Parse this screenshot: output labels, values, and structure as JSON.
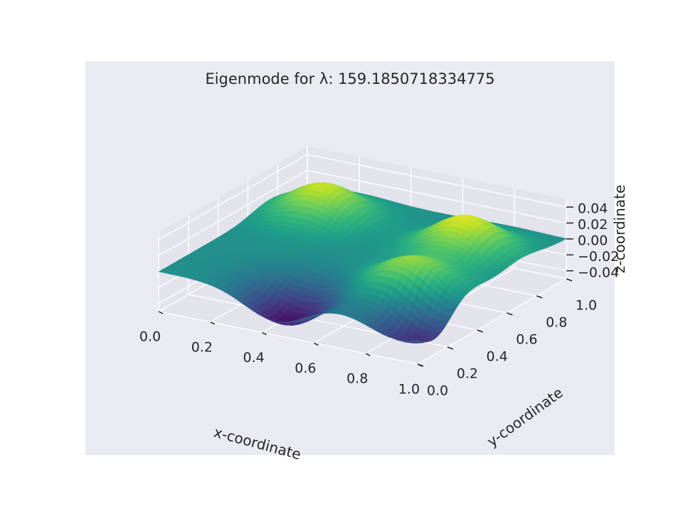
{
  "chart_data": {
    "type": "surface3d",
    "title": "Eigenmode for λ: 159.1850718334775",
    "xlabel": "x-coordinate",
    "ylabel": "y-coordinate",
    "zlabel": "z-coordinate",
    "xlim": [
      0.0,
      1.0
    ],
    "ylim": [
      0.0,
      1.0
    ],
    "zlim": [
      -0.05,
      0.05
    ],
    "x_ticks": [
      "0.0",
      "0.2",
      "0.4",
      "0.6",
      "0.8",
      "1.0"
    ],
    "y_ticks": [
      "0.0",
      "0.2",
      "0.4",
      "0.6",
      "0.8",
      "1.0"
    ],
    "z_ticks": [
      "−0.04",
      "−0.02",
      "0.00",
      "0.02",
      "0.04"
    ],
    "colormap": "viridis",
    "grid": true,
    "surface": {
      "base_value": 0.0,
      "features": [
        {
          "kind": "peak",
          "x": 0.2,
          "y": 0.75,
          "z": 0.042
        },
        {
          "kind": "peak",
          "x": 0.78,
          "y": 0.7,
          "z": 0.045
        },
        {
          "kind": "peak",
          "x": 0.8,
          "y": 0.3,
          "z": 0.04
        },
        {
          "kind": "trough",
          "x": 0.45,
          "y": 0.1,
          "z": -0.046
        },
        {
          "kind": "trough",
          "x": 0.92,
          "y": 0.12,
          "z": -0.042
        }
      ]
    },
    "colors": {
      "axes_background": "#eaeaf2",
      "figure_background": "#ffffff",
      "grid": "#ffffff",
      "text": "#262626"
    }
  }
}
